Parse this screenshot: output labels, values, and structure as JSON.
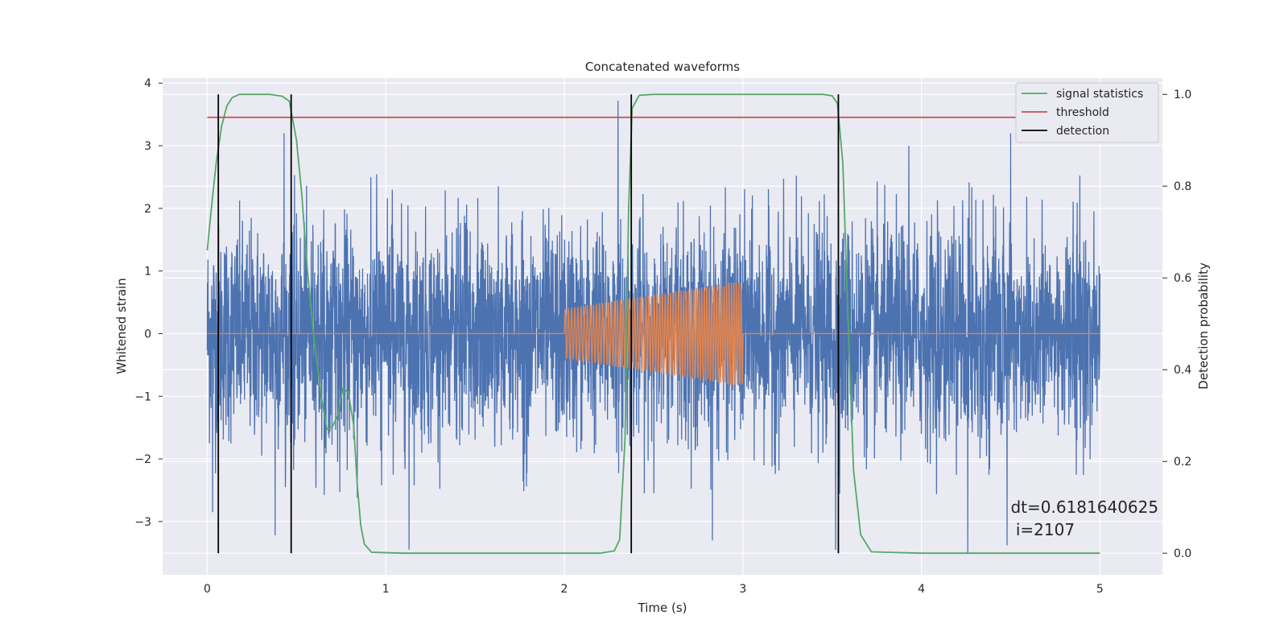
{
  "chart_data": {
    "type": "line",
    "title": "Concatenated waveforms",
    "xlabel": "Time (s)",
    "ylabel": "Whitened strain",
    "y2label": "Detection probability",
    "xlim": [
      -0.25,
      5.35
    ],
    "ylim": [
      -3.85,
      4.08
    ],
    "y2lim": [
      -0.047,
      1.0355
    ],
    "xticks": [
      0,
      1,
      2,
      3,
      4,
      5
    ],
    "yticks": [
      -3,
      -2,
      -1,
      0,
      1,
      2,
      3,
      4
    ],
    "y2ticks": [
      0.0,
      0.2,
      0.4,
      0.6,
      0.8,
      1.0
    ],
    "grid": true,
    "legend_position": "top-right",
    "series": [
      {
        "name": "",
        "axis": "left",
        "kind": "noise",
        "color": "#4c72b0",
        "x_range": [
          0,
          5
        ],
        "sigma": 0.85,
        "peaks": [
          {
            "x": 0.43,
            "y": 3.2
          },
          {
            "x": 2.3,
            "y": 3.72
          },
          {
            "x": 4.5,
            "y": 3.2
          },
          {
            "x": 3.93,
            "y": 3.0
          },
          {
            "x": 0.03,
            "y": -2.85
          },
          {
            "x": 0.38,
            "y": -3.22
          },
          {
            "x": 0.84,
            "y": -2.62
          },
          {
            "x": 1.13,
            "y": -3.45
          },
          {
            "x": 2.83,
            "y": -3.3
          },
          {
            "x": 3.52,
            "y": -3.45
          },
          {
            "x": 4.26,
            "y": -3.5
          },
          {
            "x": 4.48,
            "y": -3.38
          }
        ]
      },
      {
        "name": "",
        "axis": "left",
        "kind": "chirp",
        "color": "#dd8452",
        "x_range": [
          0,
          5
        ],
        "chirp_start": 2.0,
        "chirp_end": 3.0,
        "amp_start": 0.4,
        "amp_end": 0.85,
        "freq_start": 55,
        "freq_end": 75
      },
      {
        "name": "signal statistics",
        "axis": "right",
        "color": "#55a868",
        "x": [
          0,
          0.02,
          0.05,
          0.08,
          0.11,
          0.14,
          0.18,
          0.25,
          0.35,
          0.42,
          0.46,
          0.5,
          0.53,
          0.56,
          0.6,
          0.64,
          0.67,
          0.7,
          0.73,
          0.76,
          0.79,
          0.82,
          0.84,
          0.86,
          0.88,
          0.92,
          1.1,
          1.5,
          2.0,
          2.2,
          2.28,
          2.31,
          2.34,
          2.36,
          2.38,
          2.42,
          2.5,
          3.0,
          3.45,
          3.5,
          3.53,
          3.56,
          3.59,
          3.62,
          3.66,
          3.72,
          4.0,
          4.5,
          5.0
        ],
        "y": [
          0.66,
          0.74,
          0.85,
          0.93,
          0.975,
          0.993,
          1.0,
          1.0,
          1.0,
          0.996,
          0.985,
          0.9,
          0.78,
          0.62,
          0.46,
          0.34,
          0.27,
          0.275,
          0.3,
          0.36,
          0.35,
          0.28,
          0.15,
          0.06,
          0.02,
          0.002,
          0.0,
          0.0,
          0.0,
          0.0,
          0.005,
          0.03,
          0.25,
          0.75,
          0.97,
          0.998,
          1.0,
          1.0,
          1.0,
          0.997,
          0.98,
          0.85,
          0.5,
          0.18,
          0.04,
          0.003,
          0.0,
          0.0,
          0.0
        ]
      },
      {
        "name": "threshold",
        "axis": "right",
        "color": "#c44e52",
        "x": [
          0,
          5
        ],
        "y": [
          0.95,
          0.95
        ]
      },
      {
        "name": "detection",
        "axis": "right",
        "color": "#000000",
        "kind": "vlines",
        "x": [
          0.062,
          0.47,
          2.375,
          3.535
        ],
        "y_range": [
          0.0,
          1.0
        ]
      }
    ],
    "annotation": {
      "line1": "dt=0.6181640625",
      "line2": " i=2107",
      "x": 4.5,
      "y": 0.1
    }
  }
}
